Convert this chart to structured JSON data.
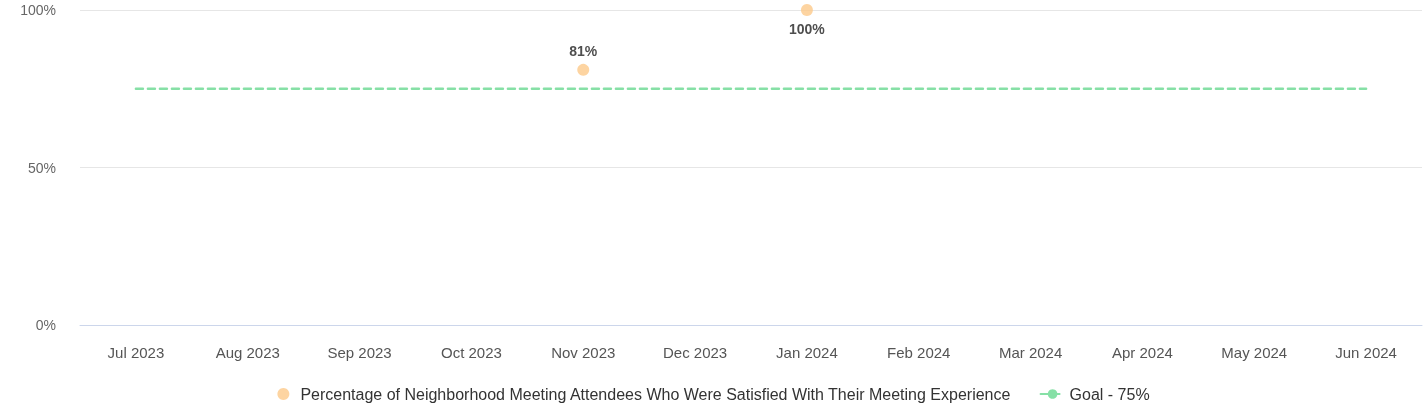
{
  "chart_data": {
    "type": "line",
    "categories": [
      "Jul 2023",
      "Aug 2023",
      "Sep 2023",
      "Oct 2023",
      "Nov 2023",
      "Dec 2023",
      "Jan 2024",
      "Feb 2024",
      "Mar 2024",
      "Apr 2024",
      "May 2024",
      "Jun 2024"
    ],
    "series": [
      {
        "type": "scatter",
        "name": "Percentage of Neighborhood Meeting Attendees Who Were Satisfied With Their Meeting Experience",
        "color": "#fcc98a",
        "marker": "circle",
        "values": [
          null,
          null,
          null,
          null,
          81,
          null,
          100,
          null,
          null,
          null,
          null,
          null
        ],
        "value_labels": [
          null,
          null,
          null,
          null,
          "81%",
          null,
          "100%",
          null,
          null,
          null,
          null,
          null
        ]
      },
      {
        "name": "Goal - 75%",
        "color": "#86e0a6",
        "marker": "none",
        "line_style": "dashed",
        "values": [
          75,
          75,
          75,
          75,
          75,
          75,
          75,
          75,
          75,
          75,
          75,
          75
        ]
      }
    ],
    "ylim": [
      0,
      100
    ],
    "yticks": [
      {
        "value": 0,
        "label": "0%"
      },
      {
        "value": 50,
        "label": "50%"
      },
      {
        "value": 100,
        "label": "100%"
      }
    ],
    "grid": "y",
    "legend": "bottom"
  }
}
